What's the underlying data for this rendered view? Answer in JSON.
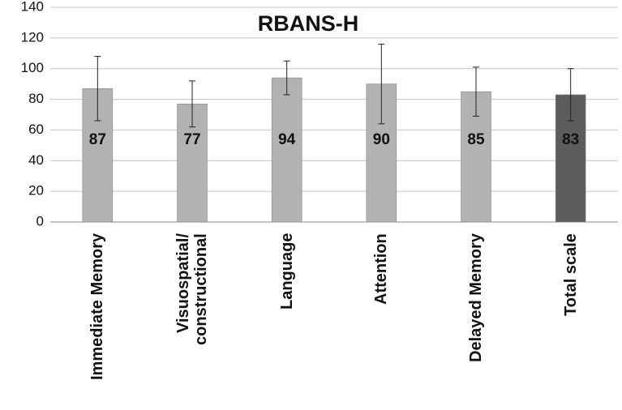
{
  "chart_data": {
    "type": "bar",
    "title": "RBANS-H",
    "categories": [
      "Immediate Memory",
      "Visuospatial/ constructional",
      "Language",
      "Attention",
      "Delayed Memory",
      "Total scale"
    ],
    "values": [
      87,
      77,
      94,
      90,
      85,
      83
    ],
    "errors": [
      21,
      15,
      11,
      26,
      16,
      17
    ],
    "colors": [
      "#b2b2b2",
      "#b2b2b2",
      "#b2b2b2",
      "#b2b2b2",
      "#b2b2b2",
      "#5c5c5c"
    ],
    "ylim": [
      0,
      140
    ],
    "yticks": [
      0,
      20,
      40,
      60,
      80,
      100,
      120,
      140
    ],
    "grid": true
  }
}
